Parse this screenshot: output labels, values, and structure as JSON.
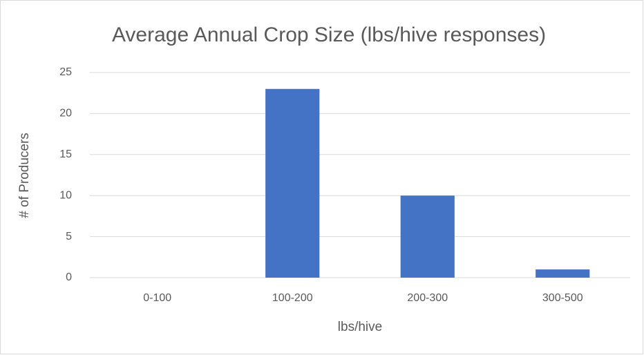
{
  "chart_data": {
    "type": "bar",
    "title": "Average Annual Crop Size (lbs/hive responses)",
    "x_label": "lbs/hive",
    "y_label": "# of Producers",
    "categories": [
      "0-100",
      "100-200",
      "200-300",
      "300-500"
    ],
    "values": [
      0,
      23,
      10,
      1
    ],
    "color": "#4472c4",
    "ylim": [
      0,
      25
    ],
    "yticks": [
      0,
      5,
      10,
      15,
      20,
      25
    ],
    "grid": true
  }
}
